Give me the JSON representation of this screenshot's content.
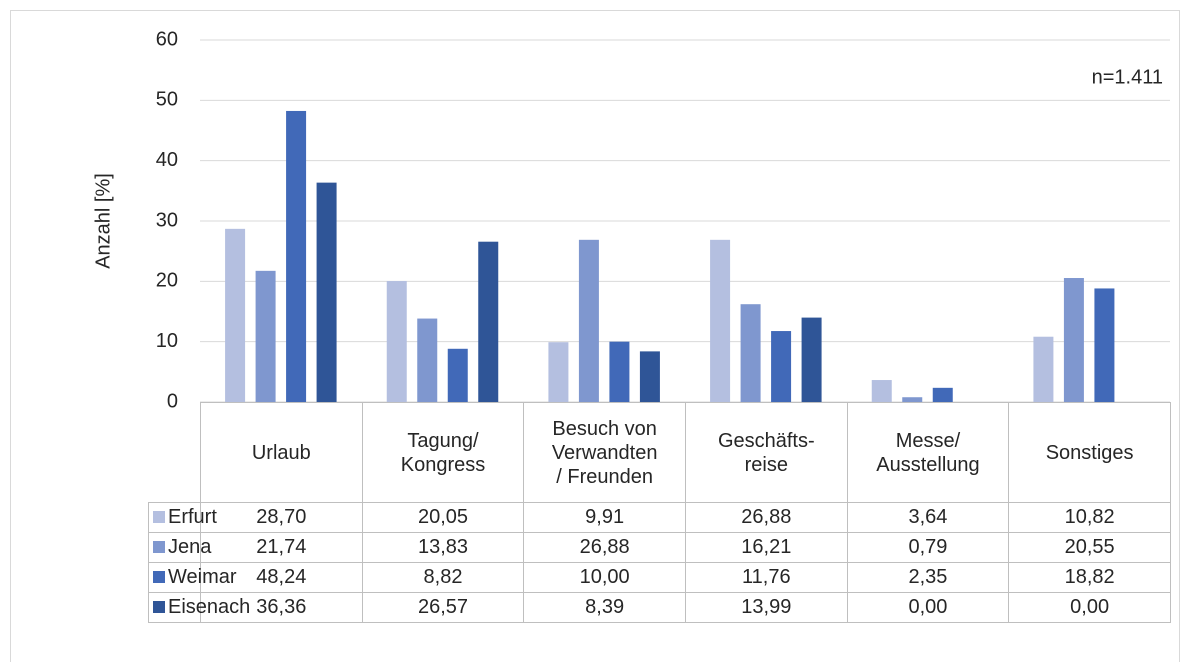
{
  "chart_data": {
    "type": "bar",
    "ylabel": "Anzahl [%]",
    "annotation": "n=1.411",
    "categories": [
      "Urlaub",
      "Tagung/\nKongress",
      "Besuch von\nVerwandten\n/ Freunden",
      "Geschäfts-\nreise",
      "Messe/\nAusstellung",
      "Sonstiges"
    ],
    "series": [
      {
        "name": "Erfurt",
        "color": "#b4bfe0",
        "values": [
          28.7,
          20.05,
          9.91,
          26.88,
          3.64,
          10.82
        ],
        "value_labels": [
          "28,70",
          "20,05",
          "9,91",
          "26,88",
          "3,64",
          "10,82"
        ]
      },
      {
        "name": "Jena",
        "color": "#7f97cf",
        "values": [
          21.74,
          13.83,
          26.88,
          16.21,
          0.79,
          20.55
        ],
        "value_labels": [
          "21,74",
          "13,83",
          "26,88",
          "16,21",
          "0,79",
          "20,55"
        ]
      },
      {
        "name": "Weimar",
        "color": "#4169b8",
        "values": [
          48.24,
          8.82,
          10.0,
          11.76,
          2.35,
          18.82
        ],
        "value_labels": [
          "48,24",
          "8,82",
          "10,00",
          "11,76",
          "2,35",
          "18,82"
        ]
      },
      {
        "name": "Eisenach",
        "color": "#2f5597",
        "values": [
          36.36,
          26.57,
          8.39,
          13.99,
          0.0,
          0.0
        ],
        "value_labels": [
          "36,36",
          "26,57",
          "8,39",
          "13,99",
          "0,00",
          "0,00"
        ]
      }
    ],
    "ylim": [
      0,
      60
    ],
    "yticks": [
      0,
      10,
      20,
      30,
      40,
      50,
      60
    ],
    "grid": true
  }
}
